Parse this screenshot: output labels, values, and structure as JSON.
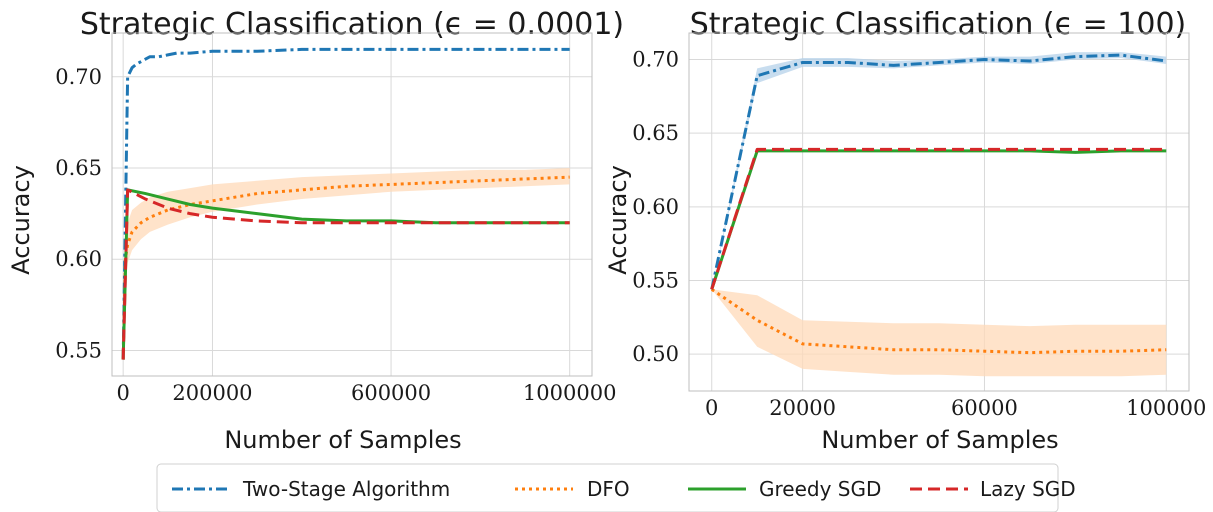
{
  "colors": {
    "two_stage": "#1f77b4",
    "dfo": "#ff7f0e",
    "greedy": "#2ca02c",
    "lazy": "#d62728",
    "dfo_band": "#ffd9b8",
    "two_stage_band": "#b6d1ea"
  },
  "legend": {
    "items": [
      {
        "key": "two_stage",
        "label": "Two-Stage Algorithm",
        "dash": "dashdot"
      },
      {
        "key": "dfo",
        "label": "DFO",
        "dash": "dotted"
      },
      {
        "key": "greedy",
        "label": "Greedy SGD",
        "dash": "solid"
      },
      {
        "key": "lazy",
        "label": "Lazy SGD",
        "dash": "dashed"
      }
    ]
  },
  "chart_data": [
    {
      "type": "line",
      "title": "Strategic Classification (ϵ = 0.0001)",
      "xlabel": "Number of Samples",
      "ylabel": "Accuracy",
      "xlim": [
        -25000,
        1050000
      ],
      "ylim": [
        0.536,
        0.724
      ],
      "xticks": [
        0,
        200000,
        600000,
        1000000
      ],
      "xtick_labels": [
        "0",
        "200000",
        "600000",
        "1000000"
      ],
      "yticks": [
        0.55,
        0.6,
        0.65,
        0.7
      ],
      "ytick_labels": [
        "0.55",
        "0.60",
        "0.65",
        "0.70"
      ],
      "grid": true,
      "series": [
        {
          "name": "Two-Stage Algorithm",
          "key": "two_stage",
          "x": [
            0,
            10000,
            20000,
            30000,
            45000,
            60000,
            80000,
            100000,
            120000,
            150000,
            200000,
            300000,
            400000,
            500000,
            600000,
            700000,
            800000,
            900000,
            1000000
          ],
          "y": [
            0.545,
            0.7,
            0.705,
            0.707,
            0.709,
            0.711,
            0.711,
            0.712,
            0.713,
            0.713,
            0.714,
            0.714,
            0.715,
            0.715,
            0.715,
            0.715,
            0.715,
            0.715,
            0.715
          ]
        },
        {
          "name": "DFO",
          "key": "dfo",
          "x": [
            0,
            5000,
            10000,
            20000,
            40000,
            60000,
            100000,
            150000,
            200000,
            300000,
            400000,
            500000,
            600000,
            700000,
            800000,
            900000,
            1000000
          ],
          "y": [
            0.545,
            0.6,
            0.608,
            0.615,
            0.62,
            0.623,
            0.627,
            0.63,
            0.632,
            0.636,
            0.638,
            0.64,
            0.641,
            0.642,
            0.643,
            0.644,
            0.645
          ],
          "band_low": [
            0.545,
            0.59,
            0.598,
            0.605,
            0.611,
            0.615,
            0.619,
            0.623,
            0.626,
            0.63,
            0.633,
            0.635,
            0.637,
            0.638,
            0.639,
            0.64,
            0.641
          ],
          "band_high": [
            0.545,
            0.612,
            0.62,
            0.627,
            0.631,
            0.634,
            0.637,
            0.639,
            0.641,
            0.643,
            0.645,
            0.646,
            0.647,
            0.648,
            0.649,
            0.649,
            0.65
          ]
        },
        {
          "name": "Greedy SGD",
          "key": "greedy",
          "x": [
            0,
            10000,
            50000,
            100000,
            150000,
            200000,
            300000,
            400000,
            500000,
            600000,
            700000,
            800000,
            900000,
            1000000
          ],
          "y": [
            0.545,
            0.638,
            0.636,
            0.633,
            0.63,
            0.628,
            0.625,
            0.622,
            0.621,
            0.621,
            0.62,
            0.62,
            0.62,
            0.62
          ]
        },
        {
          "name": "Lazy SGD",
          "key": "lazy",
          "x": [
            0,
            10000,
            50000,
            100000,
            150000,
            200000,
            250000,
            300000,
            400000,
            500000,
            600000,
            700000,
            800000,
            900000,
            1000000
          ],
          "y": [
            0.545,
            0.638,
            0.633,
            0.628,
            0.625,
            0.623,
            0.622,
            0.621,
            0.62,
            0.62,
            0.62,
            0.62,
            0.62,
            0.62,
            0.62
          ]
        }
      ]
    },
    {
      "type": "line",
      "title": "Strategic Classification (ϵ = 100)",
      "xlabel": "Number of Samples",
      "ylabel": "Accuracy",
      "xlim": [
        -5000,
        105000
      ],
      "ylim": [
        0.475,
        0.718
      ],
      "xticks": [
        0,
        20000,
        60000,
        100000
      ],
      "xtick_labels": [
        "0",
        "20000",
        "60000",
        "100000"
      ],
      "yticks": [
        0.5,
        0.55,
        0.6,
        0.65,
        0.7
      ],
      "ytick_labels": [
        "0.50",
        "0.55",
        "0.60",
        "0.65",
        "0.70"
      ],
      "grid": true,
      "series": [
        {
          "name": "Two-Stage Algorithm",
          "key": "two_stage",
          "x": [
            0,
            10000,
            20000,
            30000,
            40000,
            50000,
            60000,
            70000,
            80000,
            90000,
            100000
          ],
          "y": [
            0.544,
            0.689,
            0.698,
            0.698,
            0.696,
            0.698,
            0.7,
            0.699,
            0.702,
            0.703,
            0.699
          ],
          "band_low": [
            0.544,
            0.684,
            0.695,
            0.695,
            0.694,
            0.696,
            0.698,
            0.697,
            0.7,
            0.701,
            0.697
          ],
          "band_high": [
            0.544,
            0.694,
            0.701,
            0.701,
            0.699,
            0.7,
            0.702,
            0.702,
            0.705,
            0.705,
            0.702
          ]
        },
        {
          "name": "DFO",
          "key": "dfo",
          "x": [
            0,
            10000,
            20000,
            30000,
            40000,
            50000,
            60000,
            70000,
            80000,
            90000,
            100000
          ],
          "y": [
            0.544,
            0.523,
            0.507,
            0.505,
            0.503,
            0.503,
            0.502,
            0.501,
            0.502,
            0.502,
            0.503
          ],
          "band_low": [
            0.544,
            0.505,
            0.49,
            0.488,
            0.486,
            0.486,
            0.485,
            0.485,
            0.485,
            0.485,
            0.486
          ],
          "band_high": [
            0.544,
            0.54,
            0.523,
            0.522,
            0.521,
            0.521,
            0.52,
            0.519,
            0.52,
            0.52,
            0.52
          ]
        },
        {
          "name": "Greedy SGD",
          "key": "greedy",
          "x": [
            0,
            10000,
            20000,
            30000,
            40000,
            50000,
            60000,
            70000,
            80000,
            90000,
            100000
          ],
          "y": [
            0.544,
            0.638,
            0.638,
            0.638,
            0.638,
            0.638,
            0.638,
            0.638,
            0.637,
            0.638,
            0.638
          ]
        },
        {
          "name": "Lazy SGD",
          "key": "lazy",
          "x": [
            0,
            10000,
            20000,
            30000,
            40000,
            50000,
            60000,
            70000,
            80000,
            90000,
            100000
          ],
          "y": [
            0.544,
            0.639,
            0.639,
            0.639,
            0.639,
            0.639,
            0.639,
            0.639,
            0.639,
            0.639,
            0.639
          ]
        }
      ]
    }
  ]
}
